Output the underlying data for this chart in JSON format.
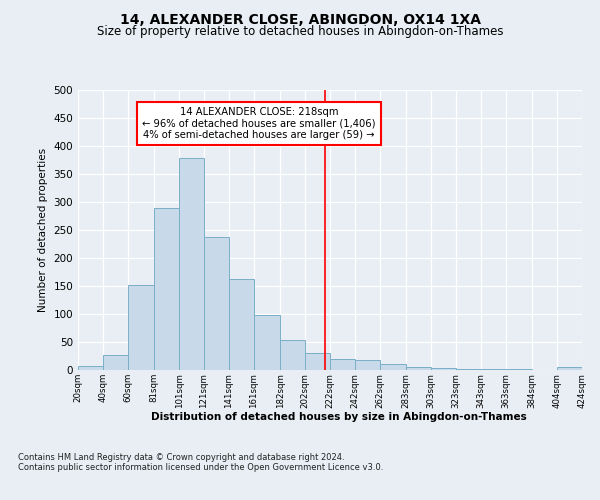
{
  "title": "14, ALEXANDER CLOSE, ABINGDON, OX14 1XA",
  "subtitle": "Size of property relative to detached houses in Abingdon-on-Thames",
  "xlabel": "Distribution of detached houses by size in Abingdon-on-Thames",
  "ylabel": "Number of detached properties",
  "bar_color": "#c8daea",
  "bar_edge_color": "#7aafc8",
  "background_color": "#e8eef4",
  "grid_color": "#ffffff",
  "property_line_x": 218,
  "annotation_title": "14 ALEXANDER CLOSE: 218sqm",
  "annotation_line1": "← 96% of detached houses are smaller (1,406)",
  "annotation_line2": "4% of semi-detached houses are larger (59) →",
  "bins": [
    20,
    40,
    60,
    81,
    101,
    121,
    141,
    161,
    182,
    202,
    222,
    242,
    262,
    283,
    303,
    323,
    343,
    363,
    384,
    404,
    424
  ],
  "bin_labels": [
    "20sqm",
    "40sqm",
    "60sqm",
    "81sqm",
    "101sqm",
    "121sqm",
    "141sqm",
    "161sqm",
    "182sqm",
    "202sqm",
    "222sqm",
    "242sqm",
    "262sqm",
    "283sqm",
    "303sqm",
    "323sqm",
    "343sqm",
    "363sqm",
    "384sqm",
    "404sqm",
    "424sqm"
  ],
  "counts": [
    7,
    27,
    152,
    290,
    378,
    237,
    163,
    98,
    53,
    30,
    20,
    18,
    10,
    5,
    3,
    2,
    2,
    2,
    0,
    5
  ],
  "ylim": [
    0,
    500
  ],
  "yticks": [
    0,
    50,
    100,
    150,
    200,
    250,
    300,
    350,
    400,
    450,
    500
  ],
  "footer": "Contains HM Land Registry data © Crown copyright and database right 2024.\nContains public sector information licensed under the Open Government Licence v3.0.",
  "title_fontsize": 10,
  "subtitle_fontsize": 8.5,
  "annotation_box_color": "white",
  "annotation_box_edge": "red",
  "red_line_color": "red"
}
